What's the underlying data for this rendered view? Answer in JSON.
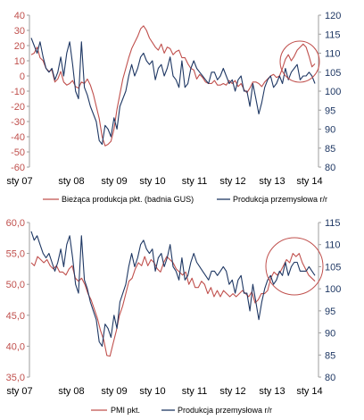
{
  "chart_data": [
    {
      "type": "line",
      "title": "",
      "x_tick_labels": [
        "sty 07",
        "sty 08",
        "sty 09",
        "sty 10",
        "sty 11",
        "sty 12",
        "sty 13",
        "sty 14"
      ],
      "y_left": {
        "ticks": [
          "40",
          "30",
          "20",
          "10",
          "0",
          "-10",
          "-20",
          "-30",
          "-40",
          "-50",
          "-60"
        ],
        "ylim": [
          -60,
          40
        ]
      },
      "y_right": {
        "ticks": [
          "120",
          "115",
          "110",
          "105",
          "100",
          "95",
          "90",
          "85",
          "80"
        ],
        "ylim": [
          80,
          120
        ]
      },
      "grid": false,
      "legend_position": "bottom",
      "annotation": "red ellipse highlighting latest values (late 2013 – 2014)",
      "series": [
        {
          "name": "Bieżąca produkcja pkt. (badnia GUS)",
          "axis": "left",
          "color": "#c0504d",
          "values": [
            14,
            15,
            19,
            12,
            10,
            5,
            3,
            4,
            -4,
            -2,
            3,
            -4,
            -6,
            -5,
            -3,
            -7,
            -8,
            -4,
            -5,
            -2,
            -6,
            -12,
            -20,
            -28,
            -40,
            -46,
            -45,
            -43,
            -35,
            -22,
            -12,
            -2,
            5,
            12,
            18,
            22,
            26,
            31,
            33,
            30,
            25,
            22,
            19,
            17,
            21,
            15,
            19,
            18,
            14,
            16,
            17,
            12,
            12,
            8,
            5,
            4,
            -2,
            1,
            -1,
            -4,
            -5,
            -5,
            -3,
            -6,
            -6,
            -5,
            -6,
            -3,
            -5,
            -3,
            -7,
            -5,
            -9,
            -11,
            -8,
            -4,
            -4,
            -5,
            -7,
            -4,
            -2,
            0,
            1,
            -1,
            0,
            5,
            11,
            14,
            10,
            13,
            17,
            19,
            21,
            19,
            13,
            6,
            8
          ]
        },
        {
          "name": "Produkcja przemysłowa r/r",
          "axis": "right",
          "color": "#1f3864",
          "values": [
            114,
            112,
            110,
            113,
            109,
            106,
            105,
            106,
            103,
            105,
            109,
            104,
            110,
            113,
            107,
            100,
            98,
            113,
            101,
            99,
            96,
            94,
            92,
            87,
            86,
            91,
            90,
            88,
            93,
            90,
            96,
            98,
            100,
            104,
            107,
            104,
            106,
            109,
            110,
            108,
            107,
            108,
            103,
            106,
            107,
            104,
            106,
            109,
            104,
            103,
            101,
            108,
            101,
            102,
            106,
            108,
            106,
            105,
            104,
            103,
            102,
            105,
            105,
            103,
            104,
            106,
            104,
            102,
            103,
            100,
            103,
            104,
            100,
            100,
            96,
            102,
            98,
            94,
            97,
            101,
            103,
            104,
            101,
            102,
            104,
            102,
            106,
            103,
            105,
            106,
            107,
            103,
            104,
            104,
            105,
            104,
            102
          ]
        }
      ],
      "legend": [
        "Bieżąca produkcja pkt. (badnia GUS)",
        "Produkcja przemysłowa r/r"
      ]
    },
    {
      "type": "line",
      "title": "",
      "x_tick_labels": [
        "sty 07",
        "sty 08",
        "sty 09",
        "sty 10",
        "sty 11",
        "sty 12",
        "sty 13",
        "sty 14"
      ],
      "y_left": {
        "ticks": [
          "60,0",
          "55,0",
          "50,0",
          "45,0",
          "40,0",
          "35,0"
        ],
        "ylim": [
          35,
          60
        ]
      },
      "y_right": {
        "ticks": [
          "115",
          "110",
          "105",
          "100",
          "95",
          "90",
          "85",
          "80"
        ],
        "ylim": [
          80,
          115
        ]
      },
      "grid": false,
      "legend_position": "bottom",
      "annotation": "red ellipse highlighting latest values (late 2013 – 2014)",
      "series": [
        {
          "name": "PMI pkt.",
          "axis": "left",
          "color": "#c0504d",
          "values": [
            53.5,
            53,
            54.5,
            54,
            53.5,
            54,
            53,
            52.5,
            53,
            52,
            52,
            51.5,
            52.5,
            53,
            51,
            50.5,
            51,
            50,
            48.5,
            47.5,
            46,
            44.5,
            42.5,
            41,
            38.5,
            38.4,
            40.5,
            42.5,
            45,
            46.5,
            48.5,
            50.5,
            51,
            52.5,
            53.5,
            53,
            54.5,
            53,
            54,
            53.5,
            52.5,
            52,
            53.5,
            54.5,
            54,
            53.5,
            52.5,
            52,
            51.5,
            52,
            50,
            51,
            49.5,
            49.5,
            50.5,
            50,
            48.5,
            49.5,
            48,
            49,
            48,
            49,
            48.5,
            48,
            48.5,
            48,
            48.5,
            49,
            48.5,
            48,
            48.8,
            47,
            47.5,
            48.5,
            48.5,
            49,
            51,
            52,
            51.5,
            52,
            53,
            54,
            53.5,
            55,
            54.5,
            55,
            53.5,
            52.5,
            51.5,
            51,
            50.5
          ]
        },
        {
          "name": "Produkcja przemysłowa r/r",
          "axis": "right",
          "color": "#1f3864",
          "values": [
            113,
            111,
            112,
            110,
            108,
            107,
            108,
            106,
            104,
            106,
            109,
            105,
            110,
            112,
            107,
            101,
            99,
            112,
            102,
            100,
            97,
            95,
            93,
            88,
            87,
            92,
            91,
            89,
            94,
            91,
            97,
            99,
            101,
            105,
            108,
            105,
            107,
            110,
            111,
            109,
            108,
            109,
            104,
            107,
            108,
            105,
            107,
            110,
            105,
            104,
            102,
            107,
            102,
            103,
            106,
            108,
            106,
            105,
            104,
            103,
            102,
            104,
            104,
            103,
            104,
            105,
            104,
            101,
            102,
            99,
            102,
            103,
            99,
            99,
            95,
            101,
            97,
            93,
            97,
            100,
            102,
            103,
            101,
            102,
            104,
            103,
            106,
            103,
            105,
            106,
            106,
            104,
            104,
            104,
            105,
            104,
            103
          ]
        }
      ],
      "legend": [
        "PMI pkt.",
        "Produkcja przemysłowa r/r"
      ]
    }
  ]
}
